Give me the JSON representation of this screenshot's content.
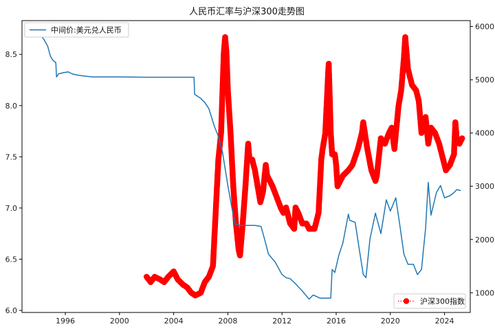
{
  "chart_data": {
    "type": "line",
    "title": "人民币汇率与沪深300走势图",
    "xlabel": "",
    "ylabel_left": "",
    "ylabel_right": "",
    "x_ticks": [
      "1996",
      "2000",
      "2004",
      "2008",
      "2012",
      "2016",
      "2020",
      "2024"
    ],
    "x_range": [
      1992.8,
      2025.9
    ],
    "y_left_ticks": [
      "6.0",
      "6.5",
      "7.0",
      "7.5",
      "8.0",
      "8.5"
    ],
    "y_left_range": [
      5.98,
      8.83
    ],
    "y_right_ticks": [
      "1000",
      "2000",
      "3000",
      "4000",
      "5000",
      "6000"
    ],
    "y_right_range": [
      630,
      6110
    ],
    "grid": false,
    "series": [
      {
        "name": "中间价:美元兑人民币",
        "axis": "left",
        "style": "line",
        "color": "#1f77b4",
        "x": [
          1994.0,
          1994.4,
          1994.7,
          1994.9,
          1995.1,
          1995.3,
          1995.35,
          1995.5,
          1995.8,
          1996.2,
          1996.5,
          1996.8,
          1997.3,
          1998.0,
          2000.0,
          2002.0,
          2004.0,
          2005.5,
          2005.55,
          2006.0,
          2006.3,
          2006.6,
          2007.0,
          2007.3,
          2007.6,
          2008.0,
          2008.3,
          2008.55,
          2009.0,
          2010.0,
          2010.45,
          2010.7,
          2011.0,
          2011.5,
          2012.0,
          2012.3,
          2012.6,
          2013.0,
          2013.5,
          2014.0,
          2014.3,
          2014.8,
          2015.0,
          2015.5,
          2015.6,
          2015.7,
          2015.9,
          2016.2,
          2016.5,
          2016.9,
          2017.0,
          2017.4,
          2017.7,
          2018.0,
          2018.2,
          2018.5,
          2018.9,
          2019.3,
          2019.7,
          2020.0,
          2020.4,
          2020.7,
          2021.0,
          2021.3,
          2021.7,
          2022.0,
          2022.3,
          2022.6,
          2022.8,
          2023.0,
          2023.4,
          2023.7,
          2024.0,
          2024.4,
          2024.7,
          2024.9,
          2025.2
        ],
        "y": [
          8.72,
          8.65,
          8.58,
          8.48,
          8.44,
          8.42,
          8.28,
          8.31,
          8.32,
          8.33,
          8.31,
          8.3,
          8.29,
          8.28,
          8.28,
          8.277,
          8.277,
          8.277,
          8.11,
          8.07,
          8.03,
          7.97,
          7.8,
          7.7,
          7.55,
          7.22,
          7.0,
          6.84,
          6.83,
          6.83,
          6.82,
          6.7,
          6.55,
          6.47,
          6.35,
          6.32,
          6.31,
          6.26,
          6.19,
          6.11,
          6.15,
          6.12,
          6.12,
          6.12,
          6.12,
          6.4,
          6.37,
          6.54,
          6.66,
          6.94,
          6.88,
          6.86,
          6.6,
          6.35,
          6.32,
          6.7,
          6.95,
          6.75,
          7.08,
          6.97,
          7.1,
          6.83,
          6.55,
          6.45,
          6.45,
          6.35,
          6.4,
          6.8,
          7.25,
          6.93,
          7.15,
          7.22,
          7.1,
          7.12,
          7.15,
          7.18,
          7.17
        ]
      },
      {
        "name": "沪深300指数",
        "axis": "right",
        "style": "markers",
        "color": "#ff0000",
        "x": [
          2002.0,
          2002.3,
          2002.6,
          2003.0,
          2003.3,
          2003.6,
          2004.0,
          2004.3,
          2004.7,
          2005.0,
          2005.3,
          2005.6,
          2006.0,
          2006.3,
          2006.6,
          2006.9,
          2007.1,
          2007.3,
          2007.5,
          2007.7,
          2007.8,
          2007.9,
          2008.0,
          2008.2,
          2008.4,
          2008.6,
          2008.8,
          2008.9,
          2009.1,
          2009.3,
          2009.5,
          2009.6,
          2009.8,
          2010.0,
          2010.2,
          2010.4,
          2010.6,
          2010.8,
          2010.9,
          2011.1,
          2011.3,
          2011.6,
          2011.9,
          2012.1,
          2012.3,
          2012.6,
          2012.9,
          2013.0,
          2013.2,
          2013.5,
          2013.8,
          2014.0,
          2014.4,
          2014.7,
          2014.9,
          2015.0,
          2015.2,
          2015.4,
          2015.45,
          2015.6,
          2015.7,
          2015.9,
          2016.0,
          2016.1,
          2016.5,
          2016.9,
          2017.2,
          2017.6,
          2017.9,
          2018.0,
          2018.3,
          2018.6,
          2018.9,
          2019.0,
          2019.3,
          2019.6,
          2019.9,
          2020.1,
          2020.3,
          2020.6,
          2020.8,
          2021.0,
          2021.1,
          2021.3,
          2021.6,
          2021.9,
          2022.1,
          2022.3,
          2022.6,
          2022.8,
          2023.0,
          2023.3,
          2023.6,
          2023.9,
          2024.1,
          2024.4,
          2024.7,
          2024.8,
          2024.9,
          2025.1,
          2025.3
        ],
        "y": [
          1300,
          1200,
          1300,
          1250,
          1200,
          1300,
          1400,
          1250,
          1150,
          1100,
          1000,
          950,
          1000,
          1200,
          1300,
          1500,
          2500,
          3500,
          4000,
          5500,
          5800,
          5500,
          4800,
          4000,
          3000,
          2300,
          1800,
          1700,
          2300,
          3000,
          3800,
          3500,
          3500,
          3300,
          3000,
          2700,
          2900,
          3400,
          3200,
          3100,
          3000,
          2800,
          2600,
          2500,
          2600,
          2300,
          2200,
          2600,
          2500,
          2300,
          2300,
          2200,
          2200,
          2500,
          3500,
          3700,
          4000,
          5100,
          5300,
          4000,
          3600,
          3600,
          3400,
          3000,
          3200,
          3300,
          3400,
          3700,
          4000,
          4200,
          3700,
          3300,
          3100,
          3200,
          3900,
          3800,
          4000,
          4100,
          3700,
          4500,
          4800,
          5400,
          5800,
          5200,
          4900,
          4800,
          4600,
          4000,
          4300,
          3800,
          4100,
          4000,
          3800,
          3500,
          3300,
          3400,
          3600,
          4200,
          3900,
          3800,
          3900
        ]
      }
    ]
  }
}
